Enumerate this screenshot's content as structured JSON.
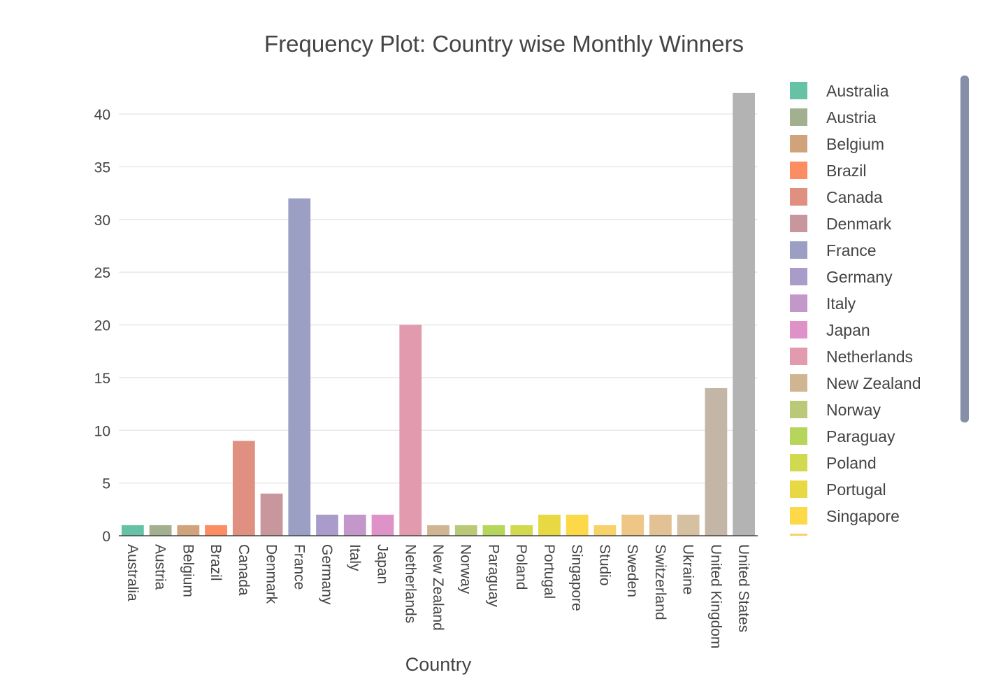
{
  "chart_data": {
    "type": "bar",
    "title": "Frequency Plot: Country wise Monthly Winners",
    "xlabel": "Country",
    "ylabel": "",
    "ylim": [
      0,
      42
    ],
    "yticks": [
      0,
      5,
      10,
      15,
      20,
      25,
      30,
      35,
      40
    ],
    "grid": true,
    "legend_position": "right",
    "categories": [
      "Australia",
      "Austria",
      "Belgium",
      "Brazil",
      "Canada",
      "Denmark",
      "France",
      "Germany",
      "Italy",
      "Japan",
      "Netherlands",
      "New Zealand",
      "Norway",
      "Paraguay",
      "Poland",
      "Portugal",
      "Singapore",
      "Studio",
      "Sweden",
      "Switzerland",
      "Ukraine",
      "United Kingdom",
      "United States"
    ],
    "values": [
      1,
      1,
      1,
      1,
      9,
      4,
      32,
      2,
      2,
      2,
      20,
      1,
      1,
      1,
      1,
      2,
      2,
      1,
      2,
      2,
      2,
      14,
      42
    ],
    "colors": [
      "#66c2a5",
      "#a3b08f",
      "#d1a37a",
      "#fc8d62",
      "#e09080",
      "#c7979d",
      "#9c9fc4",
      "#a99ccb",
      "#c397c9",
      "#df92c7",
      "#e19aae",
      "#cfb592",
      "#b9c977",
      "#b5d65a",
      "#d1d94e",
      "#e8d843",
      "#fdd849",
      "#f7d16a",
      "#eec686",
      "#e2c295",
      "#d5c0a2",
      "#c4b6a6",
      "#b3b3b3"
    ],
    "legend_items": [
      "Australia",
      "Austria",
      "Belgium",
      "Brazil",
      "Canada",
      "Denmark",
      "France",
      "Germany",
      "Italy",
      "Japan",
      "Netherlands",
      "New Zealand",
      "Norway",
      "Paraguay",
      "Poland",
      "Portugal",
      "Singapore"
    ]
  },
  "scrollbar_color": "#8590a8"
}
